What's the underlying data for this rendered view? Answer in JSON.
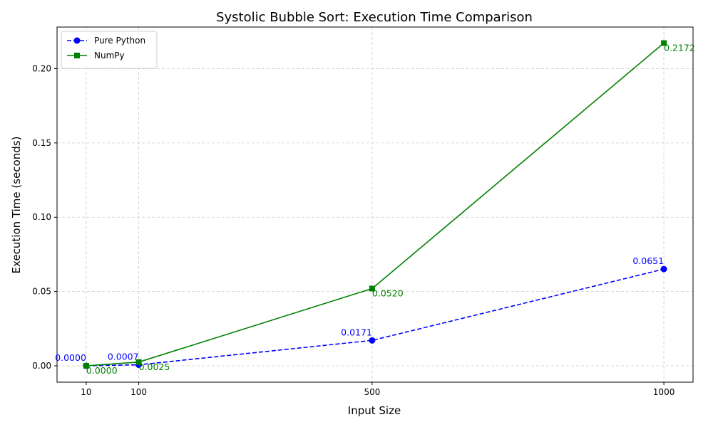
{
  "chart_data": {
    "type": "line",
    "title": "Systolic Bubble Sort: Execution Time Comparison",
    "xlabel": "Input Size",
    "ylabel": "Execution Time (seconds)",
    "x": [
      10,
      100,
      500,
      1000
    ],
    "xticks": [
      10,
      100,
      500,
      1000
    ],
    "xtick_labels": [
      "10",
      "100",
      "500",
      "1000"
    ],
    "yticks": [
      0.0,
      0.05,
      0.1,
      0.15,
      0.2
    ],
    "ytick_labels": [
      "0.00",
      "0.05",
      "0.10",
      "0.15",
      "0.20"
    ],
    "xlim": [
      -40,
      1050
    ],
    "ylim": [
      -0.011,
      0.228
    ],
    "grid": true,
    "legend_position": "top-left",
    "series": [
      {
        "name": "Pure Python",
        "values": [
          0.0,
          0.0007,
          0.0171,
          0.0651
        ],
        "labels": [
          "0.0000",
          "0.0007",
          "0.0171",
          "0.0651"
        ],
        "color": "#0000ff",
        "line_style": "dashed",
        "marker": "circle"
      },
      {
        "name": "NumPy",
        "values": [
          0.0,
          0.0025,
          0.052,
          0.2172
        ],
        "labels": [
          "0.0000",
          "0.0025",
          "0.0520",
          "0.2172"
        ],
        "color": "#008000",
        "line_style": "solid",
        "marker": "square"
      }
    ]
  }
}
